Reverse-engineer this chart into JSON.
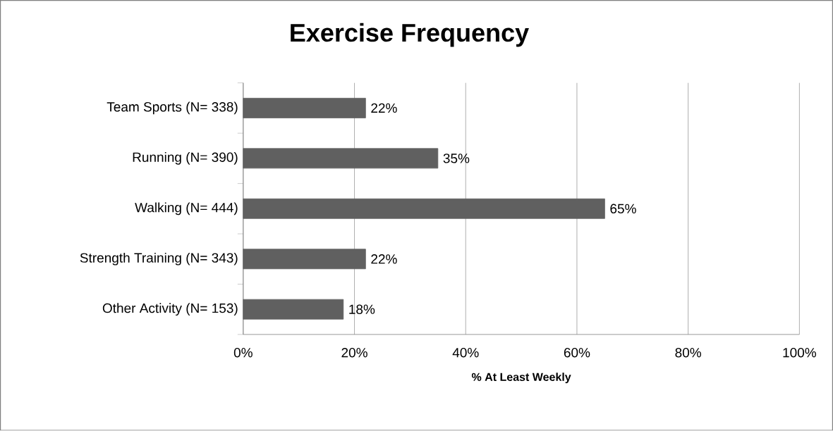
{
  "chart_data": {
    "type": "bar",
    "orientation": "horizontal",
    "title": "Exercise Frequency",
    "xlabel": "% At Least Weekly",
    "categories": [
      "Team Sports (N= 338)",
      "Running (N= 390)",
      "Walking (N= 444)",
      "Strength Training (N= 343)",
      "Other Activity (N= 153)"
    ],
    "values": [
      22,
      35,
      65,
      22,
      18
    ],
    "value_labels": [
      "22%",
      "35%",
      "65%",
      "22%",
      "18%"
    ],
    "color": "#606060",
    "xlim": [
      0,
      100
    ],
    "xticks": [
      {
        "value": 0,
        "label": "0%"
      },
      {
        "value": 20,
        "label": "20%"
      },
      {
        "value": 40,
        "label": "40%"
      },
      {
        "value": 60,
        "label": "60%"
      },
      {
        "value": 80,
        "label": "80%"
      },
      {
        "value": 100,
        "label": "100%"
      }
    ],
    "grid": "x"
  }
}
